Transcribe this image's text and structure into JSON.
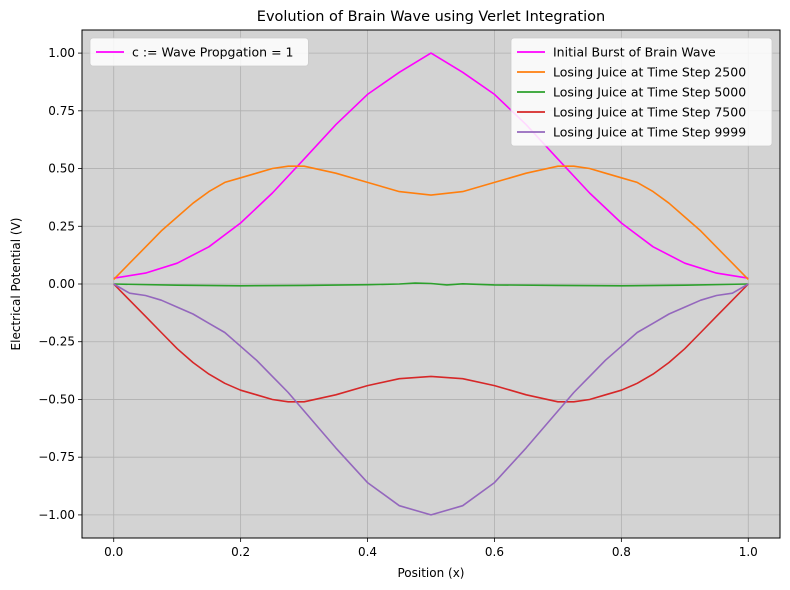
{
  "chart_data": {
    "type": "line",
    "title": "Evolution of Brain Wave using Verlet Integration",
    "xlabel": "Position (x)",
    "ylabel": "Electrical Potential (V)",
    "xlim": [
      -0.05,
      1.05
    ],
    "ylim": [
      -1.1,
      1.1
    ],
    "xticks": [
      0.0,
      0.2,
      0.4,
      0.6,
      0.8,
      1.0
    ],
    "xtick_labels": [
      "0.0",
      "0.2",
      "0.4",
      "0.6",
      "0.8",
      "1.0"
    ],
    "yticks": [
      -1.0,
      -0.75,
      -0.5,
      -0.25,
      0.0,
      0.25,
      0.5,
      0.75,
      1.0
    ],
    "ytick_labels": [
      "−1.00",
      "−0.75",
      "−0.50",
      "−0.25",
      "0.00",
      "0.25",
      "0.50",
      "0.75",
      "1.00"
    ],
    "grid": true,
    "plot_background": "#d3d3d3",
    "grid_color": "#b0b0b0",
    "legends": [
      {
        "placement": "upper-left",
        "entries": [
          {
            "label": "c := Wave Propgation = 1",
            "color": "#ff00ff"
          }
        ]
      },
      {
        "placement": "upper-right",
        "entries": [
          {
            "label": "Initial Burst of Brain Wave",
            "color": "#ff00ff"
          },
          {
            "label": "Losing Juice at Time Step 2500",
            "color": "#ff7f0e"
          },
          {
            "label": "Losing Juice at Time Step 5000",
            "color": "#2ca02c"
          },
          {
            "label": "Losing Juice at Time Step 7500",
            "color": "#d62728"
          },
          {
            "label": "Losing Juice at Time Step 9999",
            "color": "#9467bd"
          }
        ]
      }
    ],
    "series": [
      {
        "name": "Initial Burst of Brain Wave",
        "color": "#ff00ff",
        "x": [
          0.0,
          0.05,
          0.1,
          0.15,
          0.2,
          0.25,
          0.3,
          0.35,
          0.4,
          0.45,
          0.5,
          0.55,
          0.6,
          0.65,
          0.7,
          0.75,
          0.8,
          0.85,
          0.9,
          0.95,
          1.0
        ],
        "y": [
          0.025,
          0.047,
          0.09,
          0.161,
          0.264,
          0.394,
          0.541,
          0.69,
          0.821,
          0.917,
          1.0,
          0.917,
          0.821,
          0.69,
          0.541,
          0.394,
          0.264,
          0.161,
          0.09,
          0.047,
          0.025
        ]
      },
      {
        "name": "Losing Juice at Time Step 2500",
        "color": "#ff7f0e",
        "x": [
          0.0,
          0.025,
          0.05,
          0.075,
          0.1,
          0.125,
          0.15,
          0.175,
          0.2,
          0.225,
          0.25,
          0.275,
          0.3,
          0.35,
          0.4,
          0.45,
          0.5,
          0.55,
          0.6,
          0.65,
          0.7,
          0.725,
          0.75,
          0.775,
          0.8,
          0.825,
          0.85,
          0.875,
          0.9,
          0.925,
          0.95,
          0.975,
          1.0
        ],
        "y": [
          0.02,
          0.09,
          0.16,
          0.23,
          0.29,
          0.35,
          0.4,
          0.44,
          0.46,
          0.48,
          0.5,
          0.51,
          0.51,
          0.48,
          0.44,
          0.4,
          0.385,
          0.4,
          0.44,
          0.48,
          0.51,
          0.51,
          0.5,
          0.48,
          0.46,
          0.44,
          0.4,
          0.35,
          0.29,
          0.23,
          0.16,
          0.09,
          0.02
        ]
      },
      {
        "name": "Losing Juice at Time Step 5000",
        "color": "#2ca02c",
        "x": [
          0.0,
          0.1,
          0.2,
          0.3,
          0.4,
          0.45,
          0.475,
          0.5,
          0.525,
          0.55,
          0.6,
          0.7,
          0.8,
          0.9,
          1.0
        ],
        "y": [
          0.0,
          -0.005,
          -0.008,
          -0.006,
          -0.003,
          0.0,
          0.004,
          0.002,
          -0.004,
          0.001,
          -0.004,
          -0.006,
          -0.008,
          -0.005,
          0.0
        ]
      },
      {
        "name": "Losing Juice at Time Step 7500",
        "color": "#d62728",
        "x": [
          0.0,
          0.025,
          0.05,
          0.075,
          0.1,
          0.125,
          0.15,
          0.175,
          0.2,
          0.225,
          0.25,
          0.275,
          0.3,
          0.35,
          0.4,
          0.45,
          0.5,
          0.55,
          0.6,
          0.65,
          0.7,
          0.725,
          0.75,
          0.775,
          0.8,
          0.825,
          0.85,
          0.875,
          0.9,
          0.925,
          0.95,
          0.975,
          1.0
        ],
        "y": [
          0.0,
          -0.07,
          -0.14,
          -0.21,
          -0.28,
          -0.34,
          -0.39,
          -0.43,
          -0.46,
          -0.48,
          -0.5,
          -0.51,
          -0.51,
          -0.48,
          -0.44,
          -0.41,
          -0.4,
          -0.41,
          -0.44,
          -0.48,
          -0.51,
          -0.51,
          -0.5,
          -0.48,
          -0.46,
          -0.43,
          -0.39,
          -0.34,
          -0.28,
          -0.21,
          -0.14,
          -0.07,
          0.0
        ]
      },
      {
        "name": "Losing Juice at Time Step 9999",
        "color": "#9467bd",
        "x": [
          0.0,
          0.025,
          0.05,
          0.075,
          0.1,
          0.125,
          0.15,
          0.175,
          0.2,
          0.225,
          0.25,
          0.275,
          0.3,
          0.35,
          0.4,
          0.45,
          0.5,
          0.55,
          0.6,
          0.65,
          0.7,
          0.725,
          0.75,
          0.775,
          0.8,
          0.825,
          0.85,
          0.875,
          0.9,
          0.925,
          0.95,
          0.975,
          1.0
        ],
        "y": [
          0.0,
          -0.04,
          -0.05,
          -0.07,
          -0.1,
          -0.13,
          -0.17,
          -0.21,
          -0.27,
          -0.33,
          -0.4,
          -0.47,
          -0.55,
          -0.71,
          -0.86,
          -0.96,
          -1.0,
          -0.96,
          -0.86,
          -0.71,
          -0.55,
          -0.47,
          -0.4,
          -0.33,
          -0.27,
          -0.21,
          -0.17,
          -0.13,
          -0.1,
          -0.07,
          -0.05,
          -0.04,
          0.0
        ]
      }
    ]
  }
}
